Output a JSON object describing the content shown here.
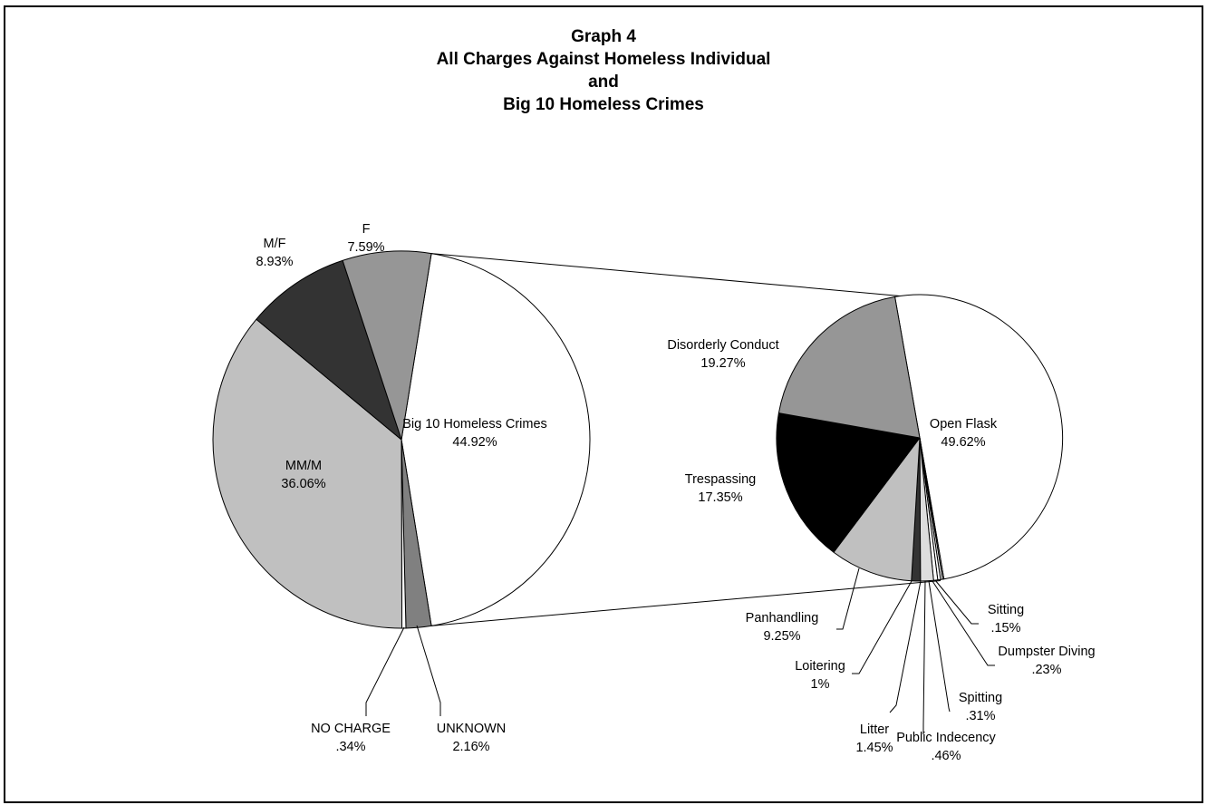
{
  "chart_data": [
    {
      "type": "pie",
      "title": [
        "Graph 4",
        "All Charges Against Homeless Individual",
        "and",
        "Big 10 Homeless Crimes"
      ],
      "slices": [
        {
          "label": "Big 10 Homeless Crimes",
          "pct_label": "44.92%",
          "value": 44.92,
          "color": "#ffffff"
        },
        {
          "label": "UNKNOWN",
          "pct_label": "2.16%",
          "value": 2.16,
          "color": "#808080"
        },
        {
          "label": "NO CHARGE",
          "pct_label": ".34%",
          "value": 0.34,
          "color": "#ffffff"
        },
        {
          "label": "MM/M",
          "pct_label": "36.06%",
          "value": 36.06,
          "color": "#c0c0c0"
        },
        {
          "label": "M/F",
          "pct_label": "8.93%",
          "value": 8.93,
          "color": "#333333"
        },
        {
          "label": "F",
          "pct_label": "7.59%",
          "value": 7.59,
          "color": "#969696"
        }
      ]
    },
    {
      "type": "pie",
      "title": "",
      "slices": [
        {
          "label": "Open Flask",
          "pct_label": "49.62%",
          "value": 49.62,
          "color": "#ffffff"
        },
        {
          "label": "Sitting",
          "pct_label": ".15%",
          "value": 0.15,
          "color": "#ffffff"
        },
        {
          "label": "Dumpster Diving",
          "pct_label": ".23%",
          "value": 0.23,
          "color": "#ffffff"
        },
        {
          "label": "Spitting",
          "pct_label": ".31%",
          "value": 0.31,
          "color": "#ffffff"
        },
        {
          "label": "Public Indecency",
          "pct_label": ".46%",
          "value": 0.46,
          "color": "#ffffff"
        },
        {
          "label": "Litter",
          "pct_label": "1.45%",
          "value": 1.45,
          "color": "#dddddd"
        },
        {
          "label": "Loitering",
          "pct_label": "1%",
          "value": 1.0,
          "color": "#333333"
        },
        {
          "label": "Panhandling",
          "pct_label": "9.25%",
          "value": 9.25,
          "color": "#c0c0c0"
        },
        {
          "label": "Trespassing",
          "pct_label": "17.35%",
          "value": 17.35,
          "color": "#000000"
        },
        {
          "label": "Disorderly Conduct",
          "pct_label": "19.27%",
          "value": 19.27,
          "color": "#969696"
        }
      ]
    }
  ]
}
